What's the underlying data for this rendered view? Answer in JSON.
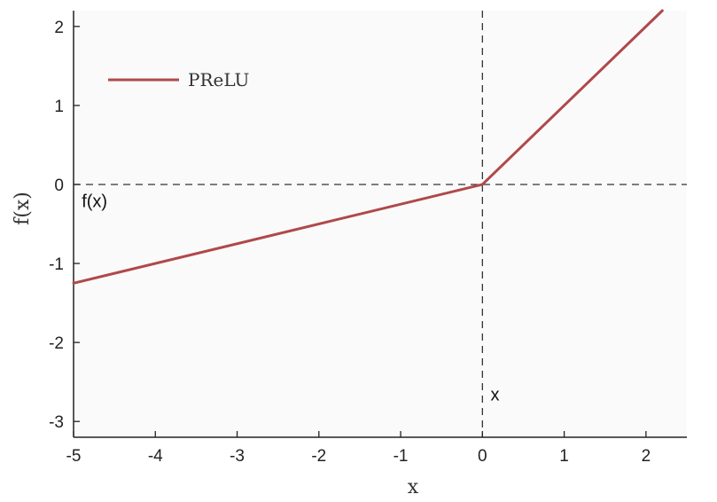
{
  "chart_data": {
    "type": "line",
    "xlabel": "x",
    "ylabel": "f(x)",
    "xlim": [
      -5,
      2.5
    ],
    "ylim": [
      -3.2,
      2.2
    ],
    "xticks": [
      "-5",
      "-4",
      "-3",
      "-2",
      "-1",
      "0",
      "1",
      "2"
    ],
    "yticks": [
      "2",
      "1",
      "0",
      "-1",
      "-2",
      "-3"
    ],
    "legend": {
      "position": "top-left",
      "entries": [
        "PReLU"
      ]
    },
    "series": [
      {
        "name": "PReLU",
        "x": [
          -5,
          0,
          2.2
        ],
        "y": [
          -1.25,
          0,
          2.2
        ]
      }
    ],
    "reference_lines": {
      "horizontal_y": 0,
      "vertical_x": 0,
      "style": "dashed"
    },
    "annotations": [
      {
        "text": "f(x)",
        "x": -4.9,
        "y": -0.15
      },
      {
        "text": "x",
        "x": 0.1,
        "y": -2.6
      }
    ],
    "colors": {
      "series": "#b0484a",
      "axis": "#222222",
      "plot_background": "#fafafa"
    }
  }
}
